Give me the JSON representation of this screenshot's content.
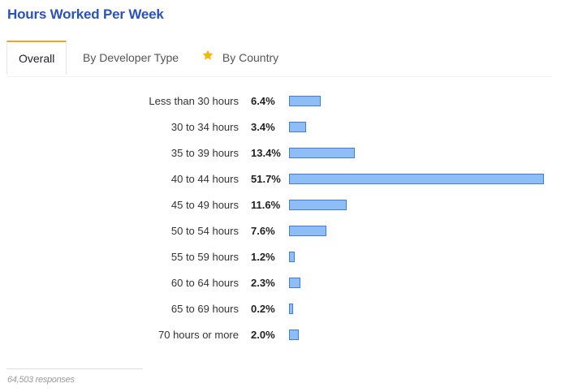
{
  "title": "Hours Worked Per Week",
  "tabs": [
    {
      "label": "Overall",
      "active": true
    },
    {
      "label": "By Developer Type",
      "active": false
    },
    {
      "label": "By Country",
      "active": false,
      "icon": "star-icon"
    }
  ],
  "colors": {
    "title": "#2a52be",
    "accent_tab": "#f0a42a",
    "bar_fill": "#8fbdf5",
    "bar_border": "#3f7ed8",
    "star_icon": "#f5b800"
  },
  "footer_text": "64,503 responses",
  "chart_data": {
    "type": "bar",
    "orientation": "horizontal",
    "categories": [
      "Less than 30 hours",
      "30 to 34 hours",
      "35 to 39 hours",
      "40 to 44 hours",
      "45 to 49 hours",
      "50 to 54 hours",
      "55 to 59 hours",
      "60 to 64 hours",
      "65 to 69 hours",
      "70 hours or more"
    ],
    "values": [
      6.4,
      3.4,
      13.4,
      51.7,
      11.6,
      7.6,
      1.2,
      2.3,
      0.2,
      2.0
    ],
    "value_labels": [
      "6.4%",
      "3.4%",
      "13.4%",
      "51.7%",
      "11.6%",
      "7.6%",
      "1.2%",
      "2.3%",
      "0.2%",
      "2.0%"
    ],
    "unit": "%",
    "grid": false,
    "legend": "none"
  }
}
